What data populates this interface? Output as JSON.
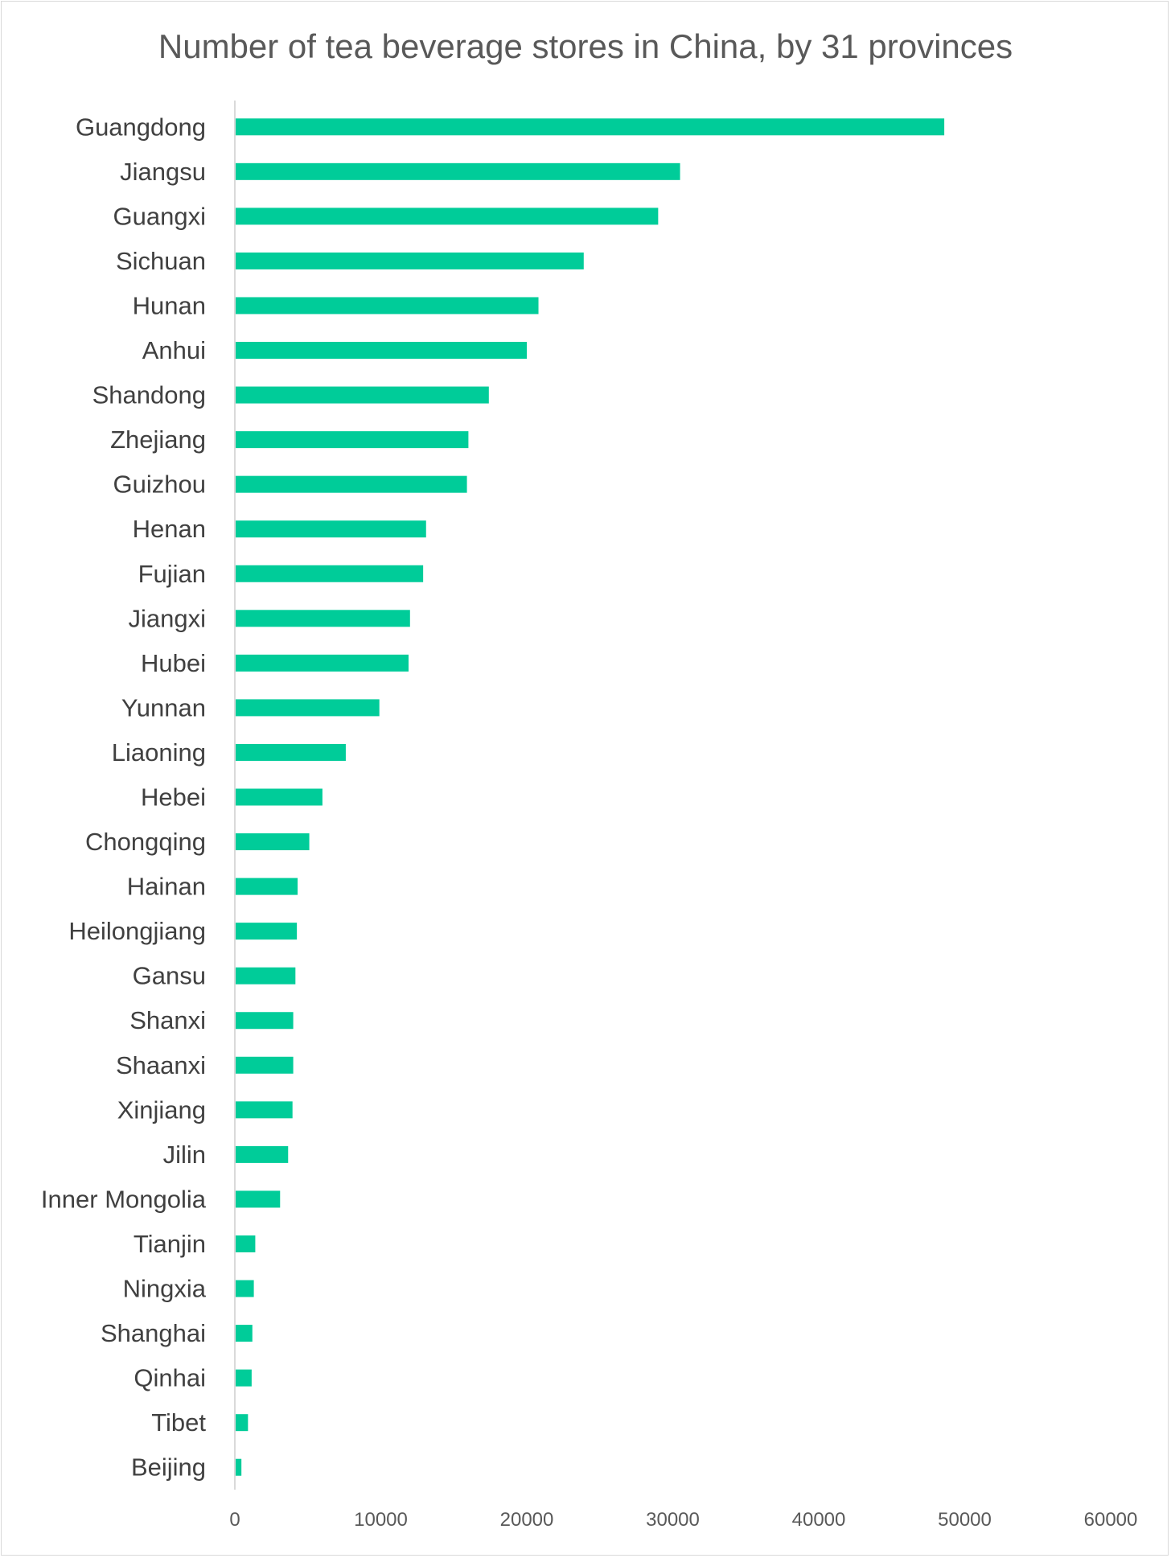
{
  "chart_data": {
    "type": "bar",
    "orientation": "horizontal",
    "title": "Number of tea beverage stores in China, by 31 provinces",
    "xlabel": "",
    "ylabel": "",
    "xlim": [
      0,
      60000
    ],
    "x_ticks": [
      "0",
      "10000",
      "20000",
      "30000",
      "40000",
      "50000",
      "60000"
    ],
    "grid": false,
    "legend": "none",
    "bar_color": "#00cc99",
    "categories": [
      "Guangdong",
      "Jiangsu",
      "Guangxi",
      "Sichuan",
      "Hunan",
      "Anhui",
      "Shandong",
      "Zhejiang",
      "Guizhou",
      "Henan",
      "Fujian",
      "Jiangxi",
      "Hubei",
      "Yunnan",
      "Liaoning",
      "Hebei",
      "Chongqing",
      "Hainan",
      "Heilongjiang",
      "Gansu",
      "Shanxi",
      "Shaanxi",
      "Xinjiang",
      "Jilin",
      "Inner Mongolia",
      "Tianjin",
      "Ningxia",
      "Shanghai",
      "Qinhai",
      "Tibet",
      "Beijing"
    ],
    "values": [
      48600,
      30500,
      29000,
      23900,
      20800,
      20000,
      17400,
      16000,
      15900,
      13100,
      12900,
      12000,
      11900,
      9900,
      7600,
      6000,
      5100,
      4300,
      4250,
      4150,
      4000,
      4000,
      3950,
      3650,
      3100,
      1400,
      1300,
      1200,
      1150,
      900,
      450
    ]
  }
}
